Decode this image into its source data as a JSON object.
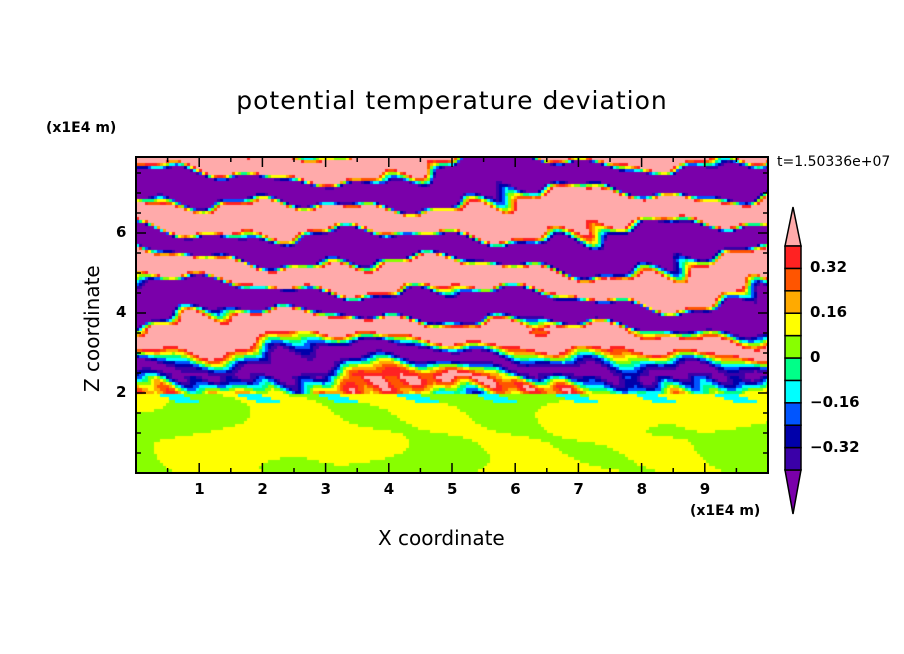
{
  "chart_data": {
    "type": "heatmap",
    "subtype": "filled-contour",
    "title": "potential temperature deviation",
    "xlabel": "X coordinate",
    "ylabel": "Z coordinate",
    "x_unit": "(x1E4 m)",
    "y_unit": "(x1E4 m)",
    "xlim": [
      0,
      10
    ],
    "ylim": [
      0,
      7.9
    ],
    "x_ticks": [
      "1",
      "2",
      "3",
      "4",
      "5",
      "6",
      "7",
      "8",
      "9"
    ],
    "y_ticks": [
      "2",
      "4",
      "6"
    ],
    "time_label": "t=1.50336e+07",
    "colorbar": {
      "levels": [
        -0.4,
        -0.32,
        -0.24,
        -0.16,
        -0.08,
        0,
        0.08,
        0.16,
        0.24,
        0.32,
        0.4
      ],
      "labels": [
        "0.32",
        "0.16",
        "0",
        "-0.16",
        "-0.32"
      ],
      "label_values": [
        0.32,
        0.16,
        0,
        -0.16,
        -0.32
      ],
      "colors_low_to_high": [
        "#7a00aa",
        "#3a00a8",
        "#0000aa",
        "#0055ff",
        "#00ffff",
        "#00ff88",
        "#88ff00",
        "#ffff00",
        "#ffaa00",
        "#ff5500",
        "#ff2222",
        "#ffaaaa"
      ],
      "extend": "both"
    },
    "description_of_field": {
      "below_z_2": "values mostly 0 to 0.08 with swirling eddies",
      "above_z_2": "alternating horizontal layers saturating above 0.4 and below -0.4, mixed transition zone near z 2-3.5"
    }
  }
}
